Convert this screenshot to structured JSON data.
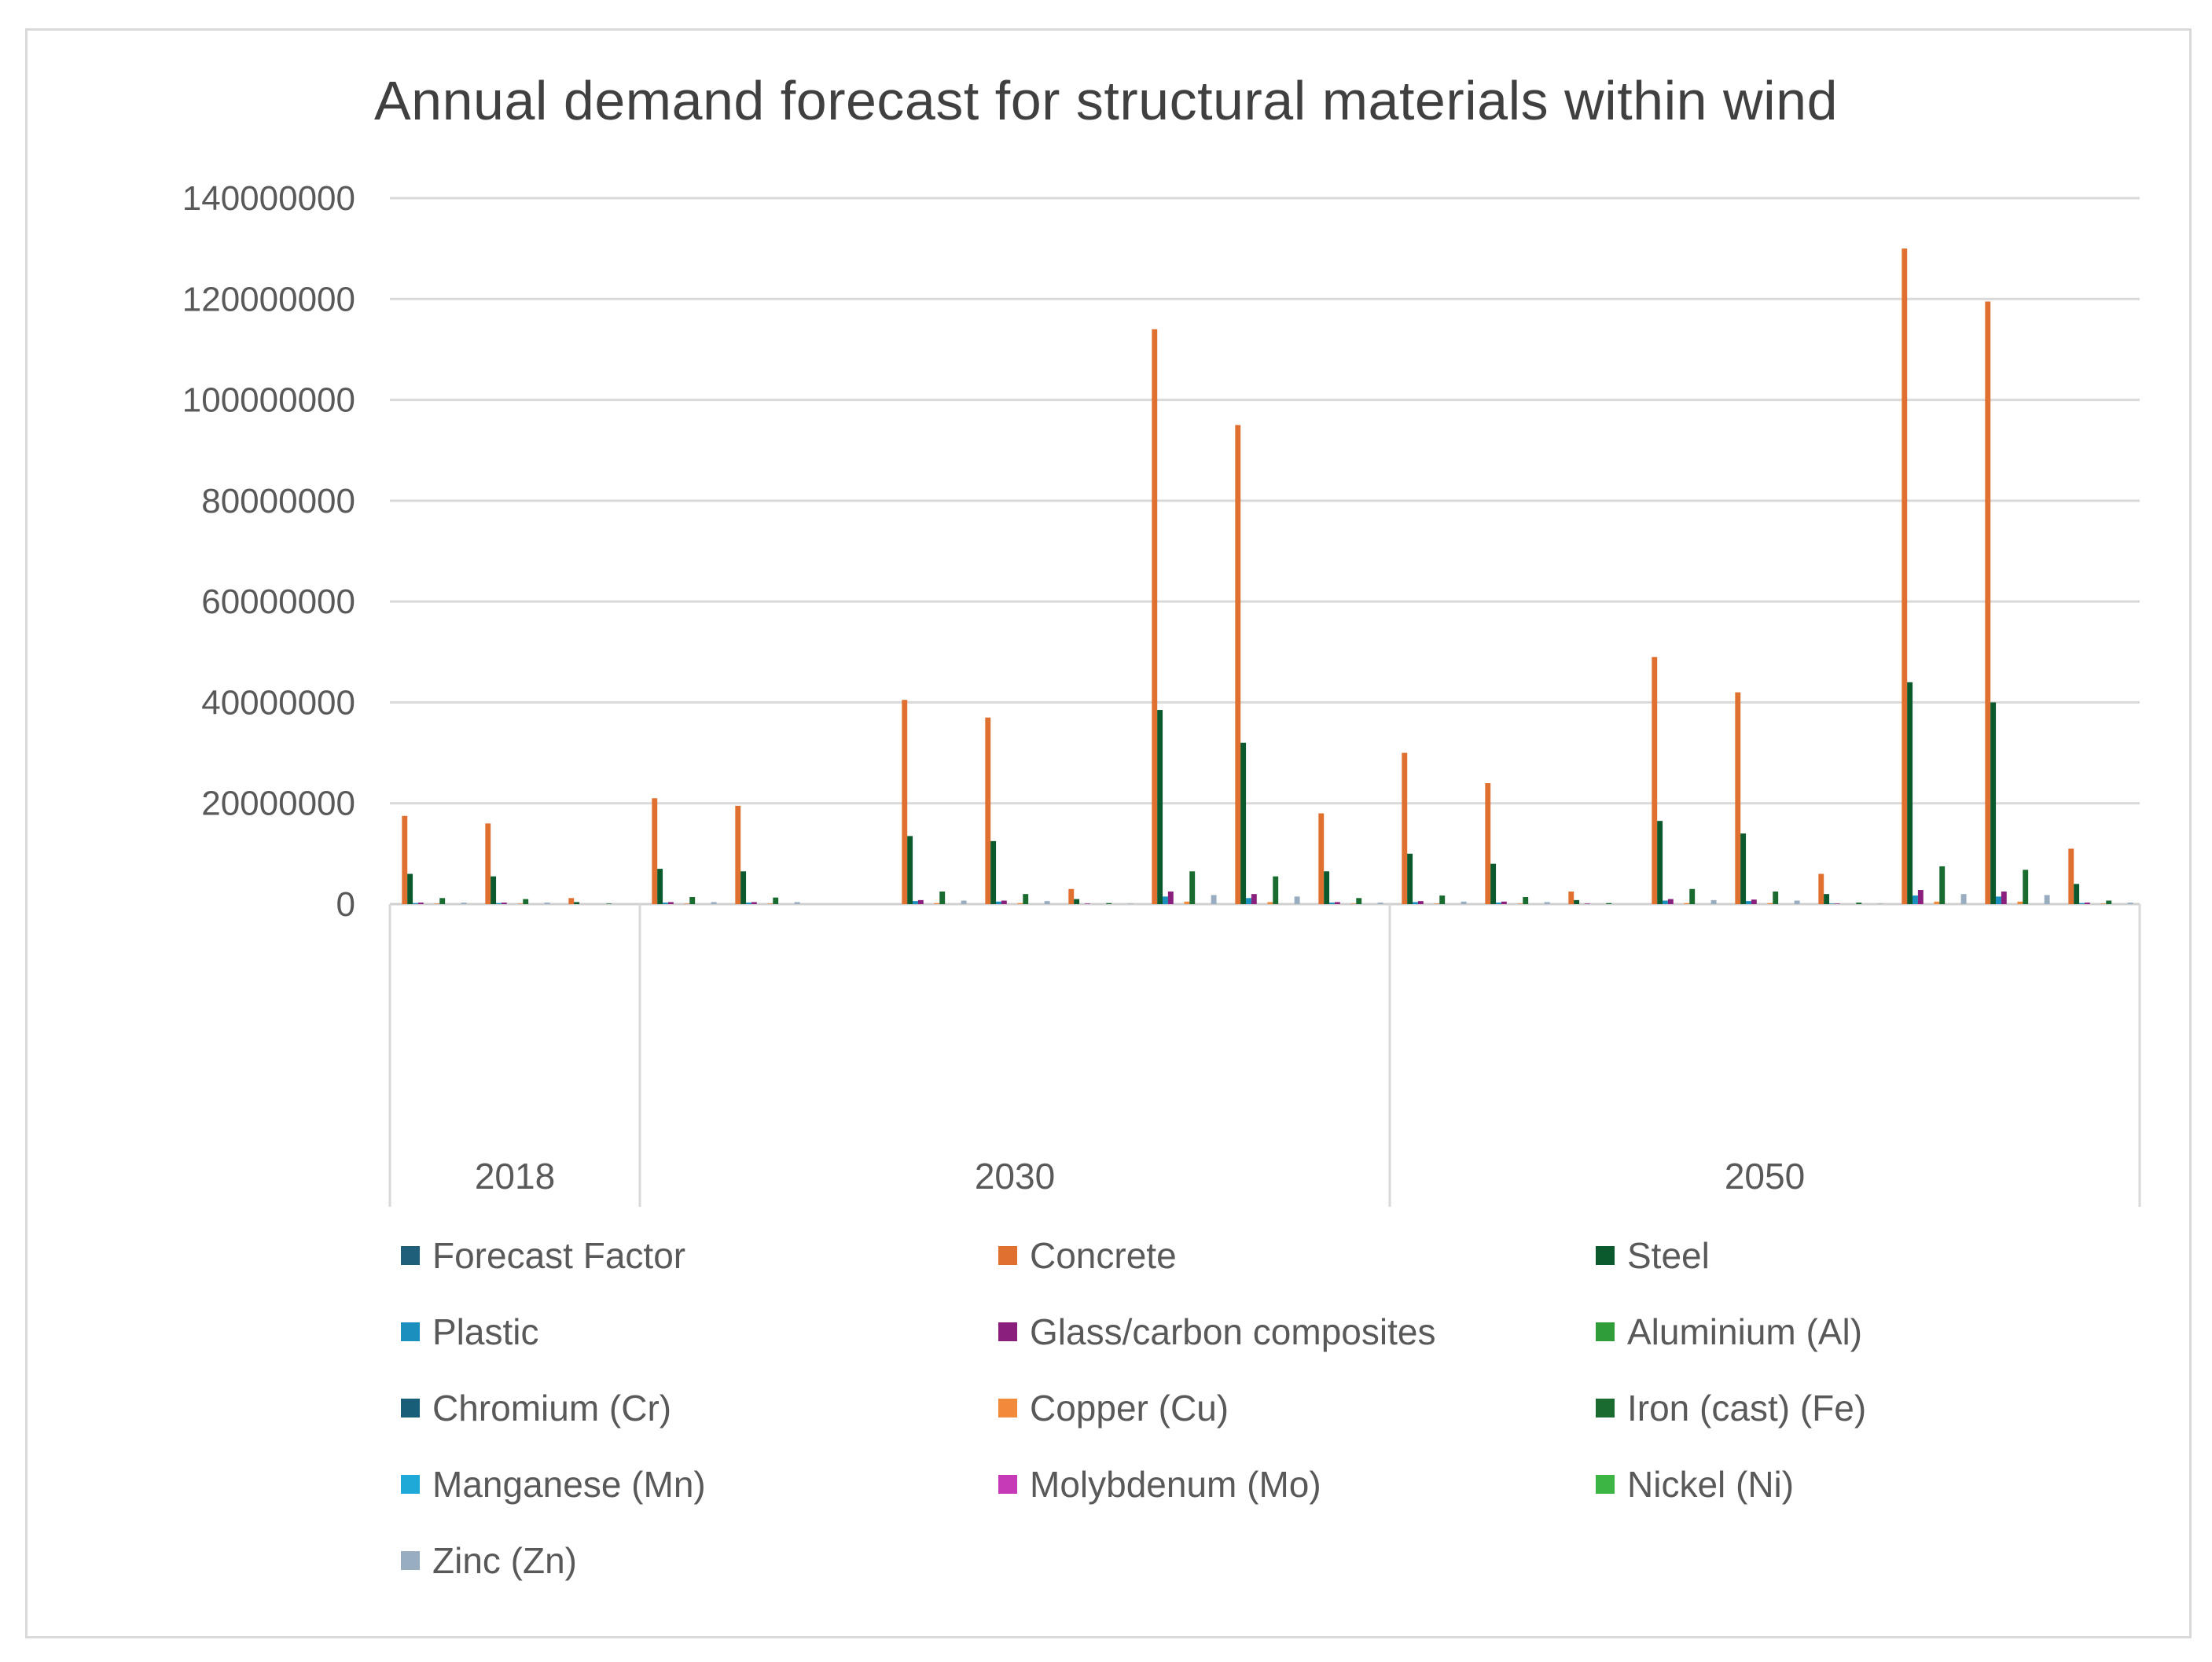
{
  "chart_data": {
    "type": "bar",
    "title": "Annual demand forecast for structural materials within wind",
    "xlabel": "",
    "ylabel": "",
    "ylim": [
      0,
      140000000
    ],
    "y_ticks": [
      0,
      20000000,
      40000000,
      60000000,
      80000000,
      100000000,
      120000000,
      140000000
    ],
    "y_tick_labels": [
      "0",
      "20000000",
      "40000000",
      "60000000",
      "80000000",
      "100000000",
      "120000000",
      "140000000"
    ],
    "grid": true,
    "legend_position": "bottom",
    "groups": [
      {
        "label": "2018",
        "subcategory_count": 3
      },
      {
        "label": "2030",
        "subcategory_count": 9
      },
      {
        "label": "2050",
        "subcategory_count": 9
      }
    ],
    "series": [
      {
        "name": "Forecast Factor",
        "color": "#1f5f7a",
        "values": [
          0,
          0,
          0,
          0,
          0,
          0,
          0,
          0,
          0,
          0,
          0,
          0,
          0,
          0,
          0,
          0,
          0,
          0,
          0,
          0,
          0
        ]
      },
      {
        "name": "Concrete",
        "color": "#e07030",
        "values": [
          17500000,
          16000000,
          1200000,
          21000000,
          19500000,
          0,
          40500000,
          37000000,
          3000000,
          114000000,
          95000000,
          18000000,
          30000000,
          24000000,
          2500000,
          49000000,
          42000000,
          6000000,
          130000000,
          119500000,
          11000000
        ]
      },
      {
        "name": "Steel",
        "color": "#0b5a2e",
        "values": [
          6000000,
          5500000,
          400000,
          7000000,
          6500000,
          0,
          13500000,
          12500000,
          1000000,
          38500000,
          32000000,
          6500000,
          10000000,
          8000000,
          800000,
          16500000,
          14000000,
          2000000,
          44000000,
          40000000,
          4000000
        ]
      },
      {
        "name": "Plastic",
        "color": "#1b8fbd",
        "values": [
          200000,
          200000,
          0,
          300000,
          300000,
          0,
          600000,
          500000,
          0,
          1500000,
          1200000,
          300000,
          400000,
          300000,
          0,
          700000,
          600000,
          100000,
          1700000,
          1500000,
          200000
        ]
      },
      {
        "name": "Glass/carbon composites",
        "color": "#8a1f7e",
        "values": [
          300000,
          300000,
          0,
          400000,
          400000,
          0,
          800000,
          700000,
          100000,
          2500000,
          2000000,
          400000,
          600000,
          500000,
          100000,
          1000000,
          900000,
          100000,
          2800000,
          2500000,
          300000
        ]
      },
      {
        "name": "Aluminium (Al)",
        "color": "#2f9e3a",
        "values": [
          0,
          0,
          0,
          0,
          0,
          0,
          0,
          0,
          0,
          0,
          0,
          0,
          0,
          0,
          0,
          0,
          0,
          0,
          0,
          0,
          0
        ]
      },
      {
        "name": "Chromium (Cr)",
        "color": "#195e78",
        "values": [
          0,
          0,
          0,
          0,
          0,
          0,
          0,
          0,
          0,
          0,
          0,
          0,
          0,
          0,
          0,
          0,
          0,
          0,
          0,
          0,
          0
        ]
      },
      {
        "name": "Copper (Cu)",
        "color": "#f28a3c",
        "values": [
          100000,
          100000,
          0,
          100000,
          100000,
          0,
          200000,
          200000,
          0,
          500000,
          400000,
          100000,
          100000,
          100000,
          0,
          200000,
          200000,
          0,
          500000,
          500000,
          100000
        ]
      },
      {
        "name": "Iron (cast) (Fe)",
        "color": "#1a6b2f",
        "values": [
          1200000,
          1000000,
          100000,
          1400000,
          1300000,
          0,
          2500000,
          2000000,
          200000,
          6500000,
          5500000,
          1200000,
          1700000,
          1400000,
          200000,
          3000000,
          2500000,
          300000,
          7500000,
          6800000,
          700000
        ]
      },
      {
        "name": "Manganese (Mn)",
        "color": "#1fa9d6",
        "values": [
          0,
          0,
          0,
          0,
          0,
          0,
          0,
          0,
          0,
          0,
          0,
          0,
          0,
          0,
          0,
          0,
          0,
          0,
          0,
          0,
          0
        ]
      },
      {
        "name": "Molybdenum (Mo)",
        "color": "#c63ab8",
        "values": [
          0,
          0,
          0,
          0,
          0,
          0,
          0,
          0,
          0,
          0,
          0,
          0,
          0,
          0,
          0,
          0,
          0,
          0,
          0,
          0,
          0
        ]
      },
      {
        "name": "Nickel (Ni)",
        "color": "#3cb544",
        "values": [
          0,
          0,
          0,
          0,
          0,
          0,
          0,
          0,
          0,
          0,
          0,
          0,
          0,
          0,
          0,
          0,
          0,
          0,
          0,
          0,
          0
        ]
      },
      {
        "name": "Zinc (Zn)",
        "color": "#98adbf",
        "values": [
          300000,
          300000,
          0,
          400000,
          400000,
          0,
          700000,
          600000,
          100000,
          1800000,
          1500000,
          300000,
          500000,
          400000,
          0,
          800000,
          700000,
          100000,
          2000000,
          1800000,
          300000
        ]
      }
    ]
  }
}
